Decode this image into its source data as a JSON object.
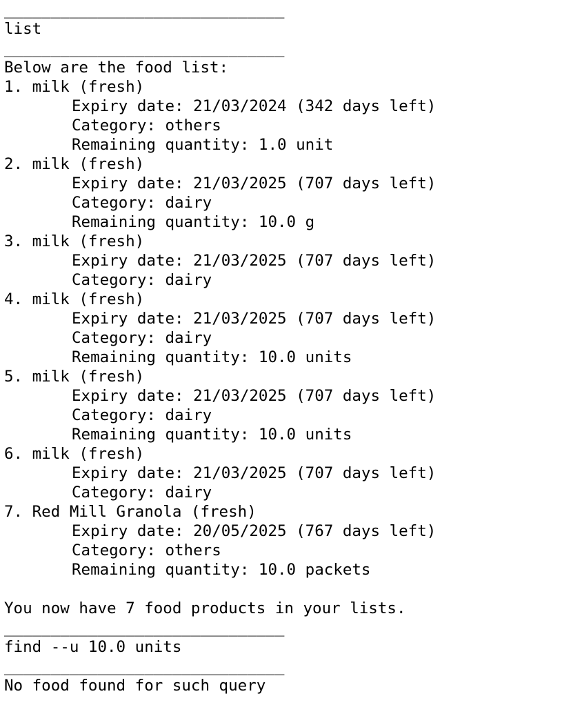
{
  "terminal": {
    "separator": "______________________________",
    "session": [
      {
        "type": "sep"
      },
      {
        "type": "cmd",
        "text": "list"
      },
      {
        "type": "sep"
      },
      {
        "type": "out",
        "text": "Below are the food list:"
      },
      {
        "type": "item",
        "text": "1. milk (fresh)"
      },
      {
        "type": "detail",
        "text": "Expiry date: 21/03/2024 (342 days left)"
      },
      {
        "type": "detail",
        "text": "Category: others"
      },
      {
        "type": "detail",
        "text": "Remaining quantity: 1.0 unit"
      },
      {
        "type": "item",
        "text": "2. milk (fresh)"
      },
      {
        "type": "detail",
        "text": "Expiry date: 21/03/2025 (707 days left)"
      },
      {
        "type": "detail",
        "text": "Category: dairy"
      },
      {
        "type": "detail",
        "text": "Remaining quantity: 10.0 g"
      },
      {
        "type": "item",
        "text": "3. milk (fresh)"
      },
      {
        "type": "detail",
        "text": "Expiry date: 21/03/2025 (707 days left)"
      },
      {
        "type": "detail",
        "text": "Category: dairy"
      },
      {
        "type": "item",
        "text": "4. milk (fresh)"
      },
      {
        "type": "detail",
        "text": "Expiry date: 21/03/2025 (707 days left)"
      },
      {
        "type": "detail",
        "text": "Category: dairy"
      },
      {
        "type": "detail",
        "text": "Remaining quantity: 10.0 units"
      },
      {
        "type": "item",
        "text": "5. milk (fresh)"
      },
      {
        "type": "detail",
        "text": "Expiry date: 21/03/2025 (707 days left)"
      },
      {
        "type": "detail",
        "text": "Category: dairy"
      },
      {
        "type": "detail",
        "text": "Remaining quantity: 10.0 units"
      },
      {
        "type": "item",
        "text": "6. milk (fresh)"
      },
      {
        "type": "detail",
        "text": "Expiry date: 21/03/2025 (707 days left)"
      },
      {
        "type": "detail",
        "text": "Category: dairy"
      },
      {
        "type": "item",
        "text": "7. Red Mill Granola (fresh)"
      },
      {
        "type": "detail",
        "text": "Expiry date: 20/05/2025 (767 days left)"
      },
      {
        "type": "detail",
        "text": "Category: others"
      },
      {
        "type": "detail",
        "text": "Remaining quantity: 10.0 packets"
      },
      {
        "type": "blank"
      },
      {
        "type": "out",
        "text": "You now have 7 food products in your lists."
      },
      {
        "type": "sep"
      },
      {
        "type": "cmd",
        "text": "find --u 10.0 units"
      },
      {
        "type": "sep"
      },
      {
        "type": "out",
        "text": "No food found for such query"
      },
      {
        "type": "sep"
      }
    ]
  }
}
